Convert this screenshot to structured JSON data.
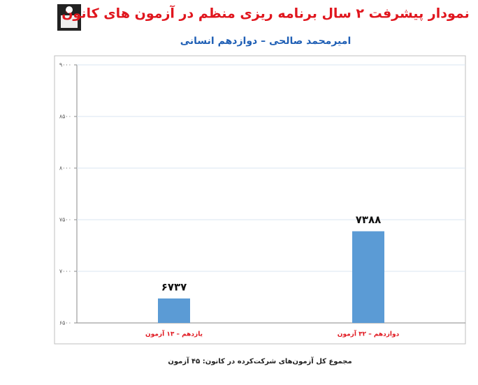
{
  "chart_data": {
    "type": "bar",
    "title": "نمودار پیشرفت ۲ سال برنامه ریزی منظم در آزمون های کانون",
    "subtitle": "امیرمحمد صالحی – دوازدهم انسانی",
    "categories": [
      "یازدهم – ۱۳ آزمون",
      "دوازدهم – ۳۲ آزمون"
    ],
    "values": [
      6737,
      7388
    ],
    "value_labels": [
      "۶۷۳۷",
      "۷۳۸۸"
    ],
    "color": "#5b9bd5",
    "ylim": [
      6500,
      9000
    ],
    "yticks": [
      {
        "value": 6500,
        "label": "۶۵۰۰"
      },
      {
        "value": 7000,
        "label": "۷۰۰۰"
      },
      {
        "value": 7500,
        "label": "۷۵۰۰"
      },
      {
        "value": 8000,
        "label": "۸۰۰۰"
      },
      {
        "value": 8500,
        "label": "۸۵۰۰"
      },
      {
        "value": 9000,
        "label": "۹۰۰۰"
      }
    ],
    "grid": true,
    "footnote": "مجموع کل آزمون‌های شرکت‌کرده در کانون: ۴۵ آزمون"
  }
}
